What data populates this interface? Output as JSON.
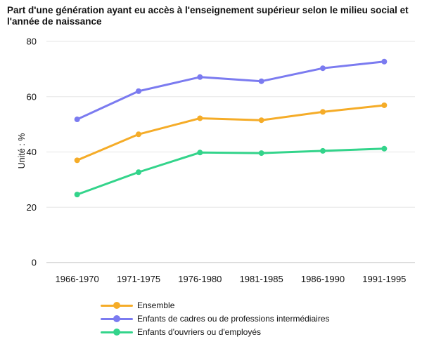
{
  "chart_data": {
    "type": "line",
    "title": "Part d'une génération ayant eu accès à l'enseignement supérieur selon le milieu social et l'année de naissance",
    "xlabel": "",
    "ylabel": "Unité : %",
    "ylim": [
      0,
      80
    ],
    "yticks": [
      0,
      20,
      40,
      60,
      80
    ],
    "grid": true,
    "legend_position": "bottom-left",
    "categories": [
      "1966-1970",
      "1971-1975",
      "1976-1980",
      "1981-1985",
      "1986-1990",
      "1991-1995"
    ],
    "series": [
      {
        "name": "Ensemble",
        "color": "#f5ac28",
        "values": [
          37.0,
          46.4,
          52.2,
          51.5,
          54.5,
          56.9
        ]
      },
      {
        "name": "Enfants de cadres ou de professions intermédiaires",
        "color": "#7b7bf0",
        "values": [
          51.8,
          62.0,
          67.1,
          65.6,
          70.3,
          72.7
        ]
      },
      {
        "name": "Enfants d'ouvriers ou d'employés",
        "color": "#33d48b",
        "values": [
          24.6,
          32.7,
          39.8,
          39.6,
          40.4,
          41.2
        ]
      }
    ]
  }
}
